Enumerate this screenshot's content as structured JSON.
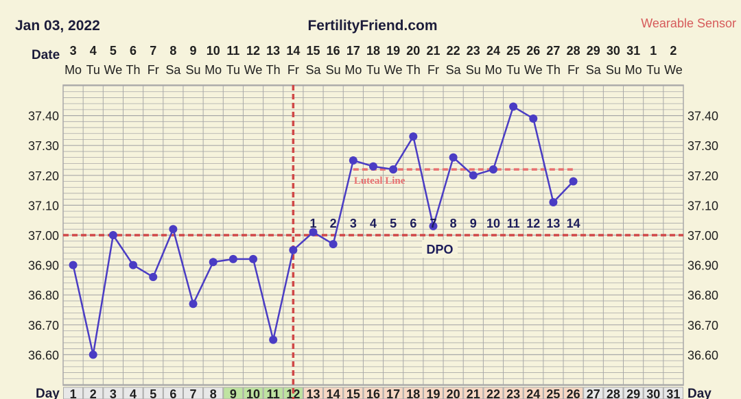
{
  "header": {
    "start_date": "Jan 03, 2022",
    "site": "FertilityFriend.com",
    "source": "Wearable Sensor"
  },
  "labels": {
    "date_row": "Date",
    "day_row": "Day",
    "dpo": "DPO",
    "luteal_line": "Luteal Line"
  },
  "colors": {
    "background": "#f6f3dc",
    "grid": "#a8a8a8",
    "series": "#4a3cc4",
    "reference": "#d04848",
    "luteal": "#e87070",
    "text": "#202020",
    "day_fertile": "#bfe3a1",
    "day_luteal": "#f7d8c4",
    "day_default": "#e8e8e8",
    "dpo_label": "#1c1c5a"
  },
  "chart_data": {
    "type": "line",
    "y_ticks": [
      "37.40",
      "37.30",
      "37.20",
      "37.10",
      "37.00",
      "36.90",
      "36.80",
      "36.70",
      "36.60"
    ],
    "dates": [
      "3",
      "4",
      "5",
      "6",
      "7",
      "8",
      "9",
      "10",
      "11",
      "12",
      "13",
      "14",
      "15",
      "16",
      "17",
      "18",
      "19",
      "20",
      "21",
      "22",
      "23",
      "24",
      "25",
      "26",
      "27",
      "28",
      "29",
      "30",
      "31",
      "1",
      "2"
    ],
    "weekdays": [
      "Mo",
      "Tu",
      "We",
      "Th",
      "Fr",
      "Sa",
      "Su",
      "Mo",
      "Tu",
      "We",
      "Th",
      "Fr",
      "Sa",
      "Su",
      "Mo",
      "Tu",
      "We",
      "Th",
      "Fr",
      "Sa",
      "Su",
      "Mo",
      "Tu",
      "We",
      "Th",
      "Fr",
      "Sa",
      "Su",
      "Mo",
      "Tu",
      "We"
    ],
    "cycle_days": [
      "1",
      "2",
      "3",
      "4",
      "5",
      "6",
      "7",
      "8",
      "9",
      "10",
      "11",
      "12",
      "13",
      "14",
      "15",
      "16",
      "17",
      "18",
      "19",
      "20",
      "21",
      "22",
      "23",
      "24",
      "25",
      "26",
      "27",
      "28",
      "29",
      "30",
      "31"
    ],
    "day_cell_types": [
      "n",
      "n",
      "n",
      "n",
      "n",
      "n",
      "n",
      "n",
      "f",
      "f",
      "f",
      "f",
      "l",
      "l",
      "l",
      "l",
      "l",
      "l",
      "l",
      "l",
      "l",
      "l",
      "l",
      "l",
      "l",
      "l",
      "n",
      "n",
      "n",
      "n",
      "n"
    ],
    "temperatures": [
      36.9,
      36.6,
      37.0,
      36.9,
      36.86,
      37.02,
      36.77,
      36.91,
      36.92,
      36.92,
      36.65,
      36.95,
      37.01,
      36.97,
      37.25,
      37.23,
      37.22,
      37.33,
      37.03,
      37.26,
      37.2,
      37.22,
      37.43,
      37.39,
      37.11,
      37.18
    ],
    "coverline": 37.0,
    "ovulation_day": 12,
    "luteal_line": {
      "value": 37.22,
      "from_day": 15,
      "to_day": 26
    },
    "dpo_labels": [
      "1",
      "2",
      "3",
      "4",
      "5",
      "6",
      "7",
      "8",
      "9",
      "10",
      "11",
      "12",
      "13",
      "14"
    ],
    "dpo_start_day": 13,
    "ylim": [
      36.5,
      37.5
    ]
  }
}
